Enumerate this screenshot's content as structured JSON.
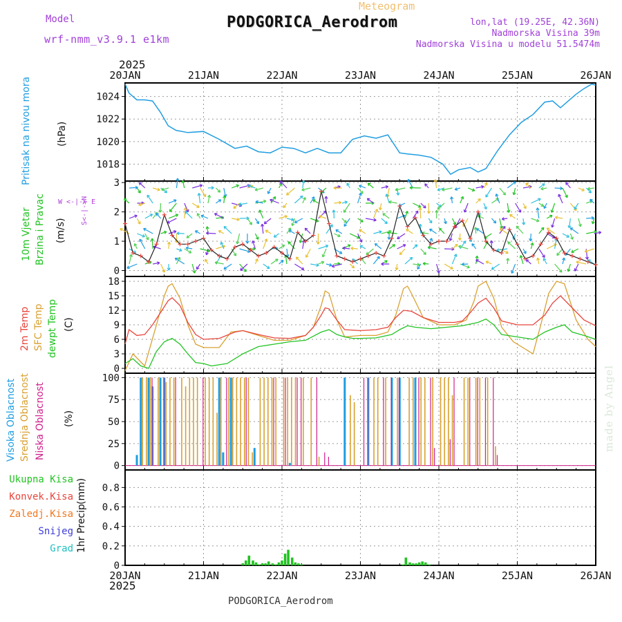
{
  "header": {
    "model_label": "Model",
    "model_name": "wrf-nmm_v3.9.1 e1km",
    "meteogram_label": "Meteogram",
    "station_title": "PODGORICA_Aerodrom",
    "lonlat": "lon,lat (19.25E, 42.36N)",
    "elevation": "Nadmorska Visina 39m",
    "model_elevation": "Nadmorska Visina u modelu 51.5474m",
    "year_top": "2025",
    "footer_station": "PODGORICA_Aerodrom",
    "watermark": "made by Angel"
  },
  "colors": {
    "pressure": "#1e9de0",
    "temp2m": "#e8453c",
    "sfc_temp": "#d9a030",
    "dewpt": "#22c322",
    "wind_speed": "#222222",
    "wind_gust_marker": "#e8453c",
    "cloud_high": "#1e9de0",
    "cloud_mid": "#d9a030",
    "cloud_low": "#d01e8c",
    "precip_total": "#22c322",
    "precip_conv": "#e8453c",
    "precip_frozen": "#f07820",
    "precip_snow": "#3c3cd8",
    "precip_hail": "#20c0c0",
    "wind_dir_legend": "#b040d8",
    "header_purple": "#a040d8",
    "header_orange": "#f0c070"
  },
  "chart_data": [
    {
      "type": "line",
      "panel": "pressure",
      "ylabel_main": "Pritisak na nivou mora",
      "ylabel_unit": "(hPa)",
      "ylim": [
        1016.5,
        1025.2
      ],
      "yticks": [
        1018,
        1020,
        1022,
        1024
      ],
      "x_unit": "days since 2025-01-20 00:00",
      "xlim": [
        0,
        6
      ],
      "xtick_labels": [
        "20JAN",
        "21JAN",
        "22JAN",
        "23JAN",
        "24JAN",
        "25JAN",
        "26JAN"
      ],
      "x_year_label": "2025",
      "grid": true,
      "series": [
        {
          "name": "Pritisak na nivou mora",
          "x": [
            0,
            0.05,
            0.15,
            0.25,
            0.35,
            0.45,
            0.55,
            0.65,
            0.8,
            1.0,
            1.2,
            1.4,
            1.55,
            1.7,
            1.85,
            2.0,
            2.15,
            2.3,
            2.45,
            2.6,
            2.75,
            2.9,
            3.05,
            3.2,
            3.35,
            3.5,
            3.6,
            3.75,
            3.9,
            4.05,
            4.15,
            4.25,
            4.4,
            4.5,
            4.6,
            4.75,
            4.9,
            5.05,
            5.2,
            5.35,
            5.45,
            5.55,
            5.65,
            5.75,
            5.85,
            5.95,
            6.0
          ],
          "values": [
            1025.1,
            1024.3,
            1023.7,
            1023.7,
            1023.6,
            1022.6,
            1021.4,
            1021.0,
            1020.8,
            1020.9,
            1020.2,
            1019.4,
            1019.6,
            1019.1,
            1019.0,
            1019.5,
            1019.4,
            1019.0,
            1019.4,
            1019.0,
            1019.0,
            1020.2,
            1020.5,
            1020.3,
            1020.6,
            1019.0,
            1018.9,
            1018.8,
            1018.6,
            1018.0,
            1017.1,
            1017.5,
            1017.7,
            1017.3,
            1017.6,
            1019.2,
            1020.6,
            1021.7,
            1022.4,
            1023.5,
            1023.6,
            1023.0,
            1023.6,
            1024.2,
            1024.7,
            1025.1,
            1025.0
          ]
        }
      ]
    },
    {
      "type": "line",
      "panel": "wind",
      "ylabel_main": "10m Vjetar",
      "ylabel_sub": "Brzina i Pravac",
      "ylabel_unit": "(m/s)",
      "direction_legend": "W <-|-> E",
      "direction_legend_ns": "S<-|->N",
      "ylim": [
        -0.2,
        3.05
      ],
      "yticks": [
        0,
        1,
        2,
        3
      ],
      "x_unit": "days since 2025-01-20 00:00",
      "xlim": [
        0,
        6
      ],
      "grid": true,
      "series": [
        {
          "name": "10m Vjetar Brzina",
          "x": [
            0,
            0.1,
            0.2,
            0.3,
            0.4,
            0.5,
            0.6,
            0.7,
            0.8,
            0.9,
            1.0,
            1.1,
            1.2,
            1.3,
            1.4,
            1.5,
            1.6,
            1.7,
            1.8,
            1.9,
            2.0,
            2.1,
            2.2,
            2.3,
            2.4,
            2.5,
            2.6,
            2.7,
            2.8,
            2.9,
            3.0,
            3.1,
            3.2,
            3.3,
            3.4,
            3.5,
            3.6,
            3.7,
            3.8,
            3.9,
            4.0,
            4.1,
            4.2,
            4.3,
            4.4,
            4.5,
            4.6,
            4.7,
            4.8,
            4.9,
            5.0,
            5.1,
            5.2,
            5.3,
            5.4,
            5.5,
            5.6,
            5.7,
            5.8,
            5.9,
            6.0
          ],
          "values": [
            1.6,
            0.6,
            0.5,
            0.3,
            0.9,
            1.9,
            1.2,
            0.9,
            0.9,
            1.0,
            1.1,
            0.7,
            0.5,
            0.4,
            0.8,
            0.9,
            0.7,
            0.5,
            0.6,
            0.8,
            0.6,
            0.4,
            1.3,
            1.0,
            1.2,
            2.7,
            1.6,
            0.5,
            0.4,
            0.3,
            0.4,
            0.5,
            0.6,
            0.5,
            1.1,
            2.2,
            1.5,
            1.8,
            1.2,
            0.9,
            1.0,
            1.0,
            1.5,
            1.7,
            1.1,
            2.0,
            1.0,
            0.7,
            0.6,
            1.4,
            0.9,
            0.4,
            0.5,
            0.9,
            1.3,
            1.1,
            0.6,
            0.5,
            0.4,
            0.3,
            0.2
          ]
        }
      ]
    },
    {
      "type": "line",
      "panel": "temperature",
      "ylabel_lines": [
        "2m Temp",
        "SFC Temp",
        "dewpt Temp"
      ],
      "ylabel_unit": "(C)",
      "ylim": [
        -1,
        19
      ],
      "yticks": [
        0,
        3,
        6,
        9,
        12,
        15,
        18
      ],
      "x_unit": "days since 2025-01-20 00:00",
      "xlim": [
        0,
        6
      ],
      "grid": true,
      "series": [
        {
          "name": "2m Temp",
          "x": [
            0,
            0.05,
            0.15,
            0.25,
            0.35,
            0.45,
            0.55,
            0.6,
            0.7,
            0.8,
            0.9,
            1.0,
            1.2,
            1.4,
            1.5,
            1.7,
            1.9,
            2.1,
            2.3,
            2.4,
            2.5,
            2.55,
            2.6,
            2.7,
            2.8,
            3.0,
            3.2,
            3.35,
            3.45,
            3.55,
            3.65,
            3.8,
            4.0,
            4.2,
            4.3,
            4.4,
            4.5,
            4.6,
            4.7,
            4.8,
            5.0,
            5.2,
            5.35,
            5.45,
            5.55,
            5.7,
            5.85,
            6.0
          ],
          "values": [
            5.0,
            8.0,
            6.8,
            7.0,
            9.0,
            11.5,
            14.0,
            14.6,
            13.0,
            9.5,
            7.0,
            6.0,
            6.2,
            7.5,
            7.8,
            7.0,
            6.3,
            6.2,
            6.8,
            8.5,
            11.0,
            12.5,
            12.3,
            10.0,
            8.0,
            7.8,
            8.0,
            8.5,
            10.5,
            12.0,
            11.8,
            10.5,
            9.5,
            9.5,
            9.8,
            11.5,
            13.5,
            14.5,
            12.5,
            9.8,
            9.0,
            9.0,
            11.0,
            13.5,
            15.0,
            12.5,
            10.0,
            8.8
          ]
        },
        {
          "name": "SFC Temp",
          "x": [
            0,
            0.1,
            0.25,
            0.4,
            0.5,
            0.55,
            0.6,
            0.7,
            0.8,
            0.9,
            1.0,
            1.2,
            1.35,
            1.5,
            1.7,
            1.9,
            2.1,
            2.3,
            2.4,
            2.5,
            2.55,
            2.6,
            2.7,
            2.8,
            3.0,
            3.2,
            3.35,
            3.45,
            3.55,
            3.6,
            3.65,
            3.8,
            4.0,
            4.2,
            4.35,
            4.45,
            4.5,
            4.6,
            4.7,
            4.8,
            4.95,
            5.1,
            5.2,
            5.3,
            5.4,
            5.5,
            5.6,
            5.75,
            5.9,
            6.0
          ],
          "values": [
            -0.5,
            3.0,
            0.5,
            9.0,
            15.0,
            17.0,
            17.5,
            14.5,
            9.0,
            5.0,
            4.3,
            4.3,
            7.5,
            7.8,
            6.8,
            5.8,
            5.8,
            6.8,
            8.5,
            13.0,
            16.0,
            15.5,
            10.0,
            6.5,
            6.8,
            6.8,
            7.5,
            11.0,
            16.5,
            17.0,
            15.5,
            10.5,
            9.0,
            9.0,
            10.0,
            14.0,
            17.0,
            18.0,
            14.5,
            8.5,
            5.5,
            4.0,
            3.0,
            9.0,
            15.5,
            18.0,
            17.5,
            10.0,
            6.0,
            4.5
          ]
        },
        {
          "name": "dewpt Temp",
          "x": [
            0,
            0.1,
            0.2,
            0.3,
            0.4,
            0.5,
            0.6,
            0.7,
            0.8,
            0.9,
            1.0,
            1.1,
            1.3,
            1.5,
            1.7,
            1.9,
            2.1,
            2.3,
            2.5,
            2.6,
            2.7,
            2.8,
            2.9,
            3.0,
            3.2,
            3.4,
            3.5,
            3.6,
            3.7,
            3.9,
            4.1,
            4.3,
            4.5,
            4.6,
            4.7,
            4.8,
            5.0,
            5.2,
            5.35,
            5.5,
            5.6,
            5.7,
            5.85,
            6.0
          ],
          "values": [
            1.0,
            2.0,
            0.5,
            0.0,
            3.5,
            5.5,
            6.2,
            5.0,
            3.0,
            1.2,
            1.0,
            0.5,
            1.0,
            3.0,
            4.5,
            5.0,
            5.5,
            5.8,
            7.5,
            8.0,
            7.0,
            6.5,
            6.2,
            6.2,
            6.3,
            7.0,
            8.0,
            8.8,
            8.5,
            8.2,
            8.5,
            8.8,
            9.5,
            10.2,
            9.0,
            7.0,
            6.5,
            6.0,
            7.5,
            8.5,
            9.0,
            7.5,
            6.8,
            6.0
          ]
        }
      ]
    },
    {
      "type": "bar",
      "panel": "clouds",
      "ylabel_lines": [
        "Visoka Oblacnost",
        "Srednja Oblacnost",
        "Niska Oblacnost"
      ],
      "ylabel_unit": "(%)",
      "ylim": [
        -5,
        105
      ],
      "yticks": [
        0,
        25,
        50,
        75,
        100
      ],
      "x_unit": "days since 2025-01-20 00:00",
      "xlim": [
        0,
        6
      ],
      "grid": true,
      "series": [
        {
          "name": "Visoka Oblacnost",
          "x": [
            0.15,
            0.2,
            0.3,
            0.35,
            0.45,
            0.5,
            1.2,
            1.25,
            1.35,
            1.65,
            2.1,
            2.8,
            3.1,
            3.4,
            3.5,
            3.7
          ],
          "values": [
            12,
            100,
            100,
            90,
            100,
            100,
            100,
            15,
            100,
            20,
            3,
            100,
            100,
            100,
            100,
            100
          ]
        },
        {
          "name": "Srednja Oblacnost",
          "x": [
            0.2,
            0.25,
            0.3,
            0.4,
            0.5,
            0.55,
            0.6,
            0.7,
            0.75,
            0.8,
            0.85,
            0.9,
            1.0,
            1.05,
            1.1,
            1.15,
            1.2,
            1.3,
            1.35,
            1.4,
            1.45,
            1.5,
            1.55,
            1.6,
            1.7,
            1.75,
            1.8,
            1.85,
            1.9,
            2.0,
            2.05,
            2.1,
            2.15,
            2.25,
            2.35,
            2.45,
            2.85,
            2.9,
            3.15,
            3.2,
            3.3,
            3.45,
            3.6,
            3.65,
            3.75,
            3.8,
            3.9,
            4.0,
            4.05,
            4.1,
            4.15,
            4.3,
            4.35,
            4.45,
            4.5,
            4.6,
            4.7
          ],
          "values": [
            100,
            100,
            100,
            100,
            95,
            100,
            100,
            100,
            90,
            100,
            100,
            100,
            100,
            100,
            100,
            60,
            100,
            100,
            100,
            100,
            100,
            100,
            100,
            15,
            100,
            100,
            100,
            100,
            100,
            100,
            100,
            100,
            100,
            100,
            100,
            10,
            80,
            72,
            100,
            100,
            100,
            100,
            100,
            100,
            100,
            100,
            100,
            100,
            100,
            100,
            80,
            100,
            100,
            100,
            100,
            100,
            22
          ]
        },
        {
          "name": "Niska Oblacnost",
          "x": [
            0.3,
            0.45,
            0.6,
            0.95,
            1.25,
            1.5,
            1.85,
            2.0,
            2.15,
            2.2,
            2.4,
            2.5,
            2.55,
            3.0,
            3.05,
            3.25,
            3.35,
            3.45,
            3.7,
            3.85,
            3.9,
            4.1,
            4.15,
            4.35,
            4.45,
            4.55,
            4.65,
            4.7
          ],
          "values": [
            100,
            100,
            100,
            100,
            100,
            100,
            100,
            100,
            100,
            100,
            100,
            15,
            10,
            100,
            100,
            100,
            100,
            100,
            100,
            100,
            20,
            30,
            100,
            100,
            100,
            100,
            100,
            12
          ]
        }
      ]
    },
    {
      "type": "bar",
      "panel": "precip",
      "ylabel_main": "1hr Precip",
      "ylabel_unit": "(mm)",
      "legend": [
        "Ukupna Kisa",
        "Konvek.Kisa",
        "Zaledj.Kisa",
        "Snijeg",
        "Grad"
      ],
      "ylim": [
        0,
        0.98
      ],
      "yticks": [
        0,
        0.2,
        0.4,
        0.6,
        0.8
      ],
      "x_unit": "days since 2025-01-20 00:00",
      "xlim": [
        0,
        6
      ],
      "xtick_labels": [
        "20JAN",
        "21JAN",
        "22JAN",
        "23JAN",
        "24JAN",
        "25JAN",
        "26JAN"
      ],
      "x_year_label": "2025",
      "grid": true,
      "series": [
        {
          "name": "Ukupna Kisa",
          "x": [
            1.5,
            1.54,
            1.58,
            1.63,
            1.67,
            1.71,
            1.75,
            1.79,
            1.83,
            1.88,
            1.92,
            1.96,
            2.0,
            2.04,
            2.08,
            2.13,
            2.17,
            2.21,
            2.25,
            3.54,
            3.58,
            3.63,
            3.67,
            3.71,
            3.75,
            3.79,
            3.83,
            3.88
          ],
          "values": [
            0.02,
            0.05,
            0.1,
            0.05,
            0.03,
            0.01,
            0.02,
            0.02,
            0.04,
            0.02,
            0.01,
            0.03,
            0.05,
            0.12,
            0.16,
            0.08,
            0.03,
            0.02,
            0.01,
            0.01,
            0.08,
            0.03,
            0.02,
            0.02,
            0.03,
            0.04,
            0.03,
            0.01
          ]
        }
      ]
    }
  ]
}
